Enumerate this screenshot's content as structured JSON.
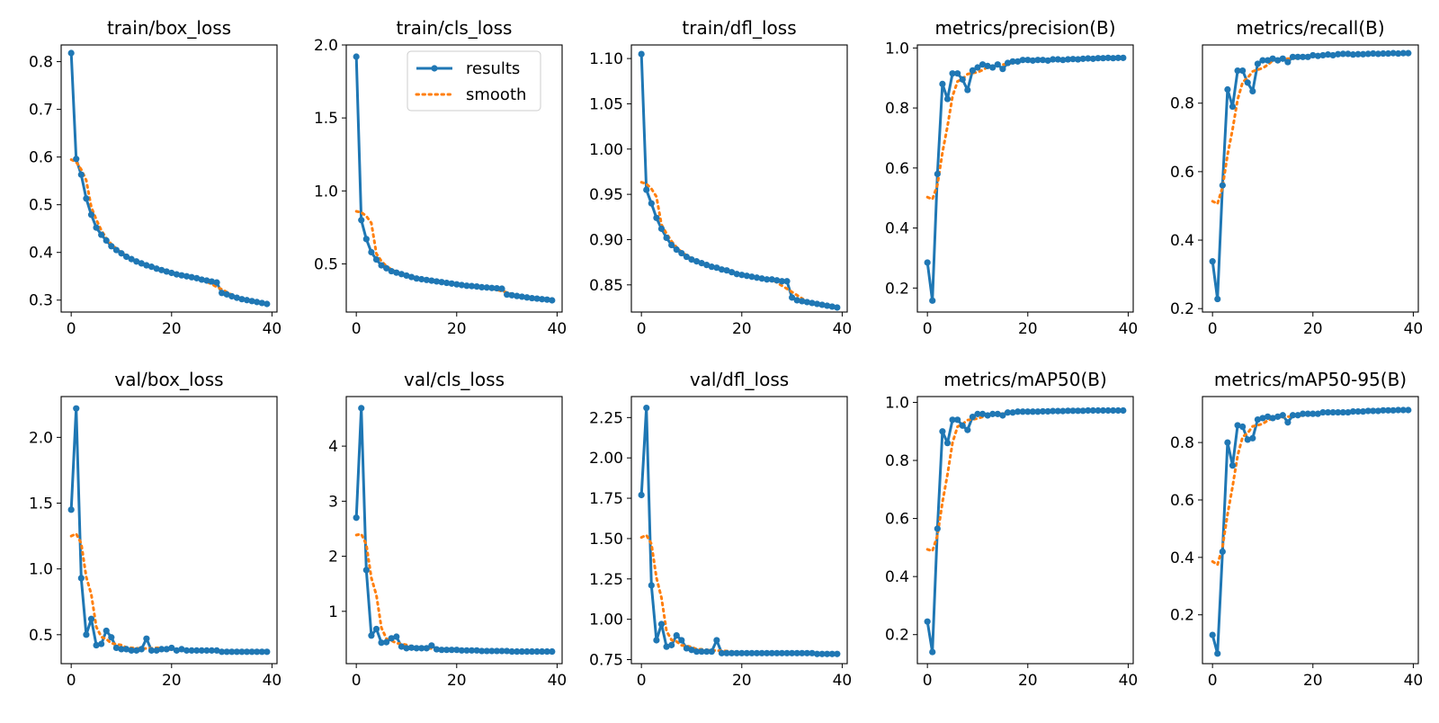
{
  "colors": {
    "results": "#1f77b4",
    "smooth": "#ff7f0e",
    "axis": "#000000"
  },
  "legend": {
    "results_label": "results",
    "smooth_label": "smooth",
    "placement": "top-right of train/cls_loss"
  },
  "chart_data": [
    {
      "type": "line",
      "title": "train/box_loss",
      "xlim": [
        -2,
        41
      ],
      "ylim": [
        0.275,
        0.835
      ],
      "xticks": [
        0,
        20,
        40
      ],
      "yticks": [
        0.3,
        0.4,
        0.5,
        0.6,
        0.7,
        0.8
      ],
      "ytick_labels": [
        "0.3",
        "0.4",
        "0.5",
        "0.6",
        "0.7",
        "0.8"
      ],
      "results": [
        0.818,
        0.596,
        0.563,
        0.513,
        0.479,
        0.452,
        0.437,
        0.425,
        0.413,
        0.405,
        0.398,
        0.391,
        0.386,
        0.381,
        0.377,
        0.373,
        0.37,
        0.366,
        0.363,
        0.36,
        0.357,
        0.354,
        0.352,
        0.35,
        0.348,
        0.346,
        0.343,
        0.341,
        0.339,
        0.337,
        0.315,
        0.312,
        0.308,
        0.305,
        0.302,
        0.3,
        0.298,
        0.296,
        0.294,
        0.292
      ]
    },
    {
      "type": "line",
      "title": "train/cls_loss",
      "xlim": [
        -2,
        41
      ],
      "ylim": [
        0.17,
        2.0
      ],
      "xticks": [
        0,
        20,
        40
      ],
      "yticks": [
        0.5,
        1.0,
        1.5,
        2.0
      ],
      "ytick_labels": [
        "0.5",
        "1.0",
        "1.5",
        "2.0"
      ],
      "results": [
        1.92,
        0.8,
        0.67,
        0.58,
        0.53,
        0.49,
        0.47,
        0.45,
        0.44,
        0.43,
        0.42,
        0.41,
        0.4,
        0.395,
        0.39,
        0.385,
        0.38,
        0.375,
        0.37,
        0.365,
        0.36,
        0.355,
        0.35,
        0.348,
        0.345,
        0.34,
        0.338,
        0.335,
        0.333,
        0.33,
        0.29,
        0.285,
        0.28,
        0.275,
        0.27,
        0.265,
        0.262,
        0.258,
        0.255,
        0.25
      ]
    },
    {
      "type": "line",
      "title": "train/dfl_loss",
      "xlim": [
        -2,
        41
      ],
      "ylim": [
        0.82,
        1.115
      ],
      "xticks": [
        0,
        20,
        40
      ],
      "yticks": [
        0.85,
        0.9,
        0.95,
        1.0,
        1.05,
        1.1
      ],
      "ytick_labels": [
        "0.85",
        "0.90",
        "0.95",
        "1.00",
        "1.05",
        "1.10"
      ],
      "results": [
        1.105,
        0.955,
        0.94,
        0.924,
        0.912,
        0.902,
        0.894,
        0.889,
        0.885,
        0.881,
        0.878,
        0.876,
        0.874,
        0.872,
        0.87,
        0.869,
        0.867,
        0.866,
        0.864,
        0.862,
        0.861,
        0.86,
        0.859,
        0.858,
        0.857,
        0.856,
        0.856,
        0.855,
        0.854,
        0.854,
        0.836,
        0.833,
        0.832,
        0.831,
        0.83,
        0.829,
        0.828,
        0.827,
        0.826,
        0.825
      ]
    },
    {
      "type": "line",
      "title": "metrics/precision(B)",
      "xlim": [
        -2,
        41
      ],
      "ylim": [
        0.12,
        1.01
      ],
      "xticks": [
        0,
        20,
        40
      ],
      "yticks": [
        0.2,
        0.4,
        0.6,
        0.8,
        1.0
      ],
      "ytick_labels": [
        "0.2",
        "0.4",
        "0.6",
        "0.8",
        "1.0"
      ],
      "results": [
        0.285,
        0.158,
        0.58,
        0.88,
        0.83,
        0.915,
        0.915,
        0.895,
        0.86,
        0.925,
        0.935,
        0.945,
        0.94,
        0.935,
        0.945,
        0.93,
        0.95,
        0.955,
        0.955,
        0.96,
        0.96,
        0.958,
        0.96,
        0.96,
        0.958,
        0.962,
        0.962,
        0.96,
        0.962,
        0.963,
        0.962,
        0.964,
        0.965,
        0.964,
        0.966,
        0.966,
        0.967,
        0.966,
        0.967,
        0.967
      ]
    },
    {
      "type": "line",
      "title": "metrics/recall(B)",
      "xlim": [
        -2,
        41
      ],
      "ylim": [
        0.19,
        0.97
      ],
      "xticks": [
        0,
        20,
        40
      ],
      "yticks": [
        0.2,
        0.4,
        0.6,
        0.8
      ],
      "ytick_labels": [
        "0.2",
        "0.4",
        "0.6",
        "0.8"
      ],
      "results": [
        0.338,
        0.228,
        0.56,
        0.84,
        0.79,
        0.895,
        0.895,
        0.86,
        0.835,
        0.915,
        0.925,
        0.925,
        0.93,
        0.925,
        0.93,
        0.92,
        0.935,
        0.935,
        0.935,
        0.935,
        0.94,
        0.938,
        0.94,
        0.942,
        0.94,
        0.943,
        0.944,
        0.944,
        0.942,
        0.943,
        0.943,
        0.944,
        0.945,
        0.944,
        0.945,
        0.945,
        0.946,
        0.945,
        0.946,
        0.946
      ]
    },
    {
      "type": "line",
      "title": "val/box_loss",
      "xlim": [
        -2,
        41
      ],
      "ylim": [
        0.28,
        2.31
      ],
      "xticks": [
        0,
        20,
        40
      ],
      "yticks": [
        0.5,
        1.0,
        1.5,
        2.0
      ],
      "ytick_labels": [
        "0.5",
        "1.0",
        "1.5",
        "2.0"
      ],
      "results": [
        1.45,
        2.22,
        0.93,
        0.5,
        0.62,
        0.42,
        0.43,
        0.53,
        0.48,
        0.4,
        0.39,
        0.39,
        0.38,
        0.38,
        0.39,
        0.47,
        0.38,
        0.38,
        0.39,
        0.39,
        0.4,
        0.38,
        0.39,
        0.38,
        0.38,
        0.38,
        0.38,
        0.38,
        0.38,
        0.38,
        0.37,
        0.37,
        0.37,
        0.37,
        0.37,
        0.37,
        0.37,
        0.37,
        0.37,
        0.37
      ]
    },
    {
      "type": "line",
      "title": "val/cls_loss",
      "xlim": [
        -2,
        41
      ],
      "ylim": [
        0.05,
        4.9
      ],
      "xticks": [
        0,
        20,
        40
      ],
      "yticks": [
        1,
        2,
        3,
        4
      ],
      "ytick_labels": [
        "1",
        "2",
        "3",
        "4"
      ],
      "results": [
        2.7,
        4.69,
        1.75,
        0.56,
        0.68,
        0.43,
        0.44,
        0.51,
        0.54,
        0.36,
        0.33,
        0.34,
        0.33,
        0.33,
        0.33,
        0.38,
        0.31,
        0.3,
        0.3,
        0.3,
        0.3,
        0.29,
        0.29,
        0.29,
        0.29,
        0.28,
        0.28,
        0.28,
        0.28,
        0.28,
        0.28,
        0.27,
        0.27,
        0.27,
        0.27,
        0.27,
        0.27,
        0.27,
        0.27,
        0.27
      ]
    },
    {
      "type": "line",
      "title": "val/dfl_loss",
      "xlim": [
        -2,
        41
      ],
      "ylim": [
        0.725,
        2.38
      ],
      "xticks": [
        0,
        20,
        40
      ],
      "yticks": [
        0.75,
        1.0,
        1.25,
        1.5,
        1.75,
        2.0,
        2.25
      ],
      "ytick_labels": [
        "0.75",
        "1.00",
        "1.25",
        "1.50",
        "1.75",
        "2.00",
        "2.25"
      ],
      "results": [
        1.77,
        2.31,
        1.21,
        0.87,
        0.97,
        0.83,
        0.84,
        0.9,
        0.87,
        0.82,
        0.81,
        0.8,
        0.8,
        0.8,
        0.8,
        0.87,
        0.79,
        0.79,
        0.79,
        0.79,
        0.79,
        0.79,
        0.79,
        0.79,
        0.79,
        0.79,
        0.79,
        0.79,
        0.79,
        0.79,
        0.79,
        0.79,
        0.79,
        0.79,
        0.79,
        0.785,
        0.785,
        0.785,
        0.785,
        0.785
      ]
    },
    {
      "type": "line",
      "title": "metrics/mAP50(B)",
      "xlim": [
        -2,
        41
      ],
      "ylim": [
        0.1,
        1.02
      ],
      "xticks": [
        0,
        20,
        40
      ],
      "yticks": [
        0.2,
        0.4,
        0.6,
        0.8,
        1.0
      ],
      "ytick_labels": [
        "0.2",
        "0.4",
        "0.6",
        "0.8",
        "1.0"
      ],
      "results": [
        0.245,
        0.14,
        0.565,
        0.9,
        0.86,
        0.94,
        0.94,
        0.92,
        0.905,
        0.95,
        0.96,
        0.96,
        0.955,
        0.96,
        0.96,
        0.955,
        0.965,
        0.965,
        0.968,
        0.968,
        0.968,
        0.968,
        0.968,
        0.969,
        0.969,
        0.97,
        0.97,
        0.97,
        0.971,
        0.971,
        0.971,
        0.971,
        0.972,
        0.972,
        0.972,
        0.972,
        0.972,
        0.972,
        0.972,
        0.972
      ]
    },
    {
      "type": "line",
      "title": "metrics/mAP50-95(B)",
      "xlim": [
        -2,
        41
      ],
      "ylim": [
        0.03,
        0.96
      ],
      "xticks": [
        0,
        20,
        40
      ],
      "yticks": [
        0.2,
        0.4,
        0.6,
        0.8
      ],
      "ytick_labels": [
        "0.2",
        "0.4",
        "0.6",
        "0.8"
      ],
      "results": [
        0.13,
        0.065,
        0.42,
        0.8,
        0.72,
        0.86,
        0.855,
        0.81,
        0.815,
        0.88,
        0.885,
        0.89,
        0.885,
        0.89,
        0.895,
        0.87,
        0.895,
        0.895,
        0.9,
        0.9,
        0.9,
        0.9,
        0.905,
        0.905,
        0.905,
        0.905,
        0.905,
        0.905,
        0.908,
        0.908,
        0.908,
        0.91,
        0.91,
        0.91,
        0.912,
        0.912,
        0.912,
        0.913,
        0.913,
        0.913
      ]
    }
  ]
}
